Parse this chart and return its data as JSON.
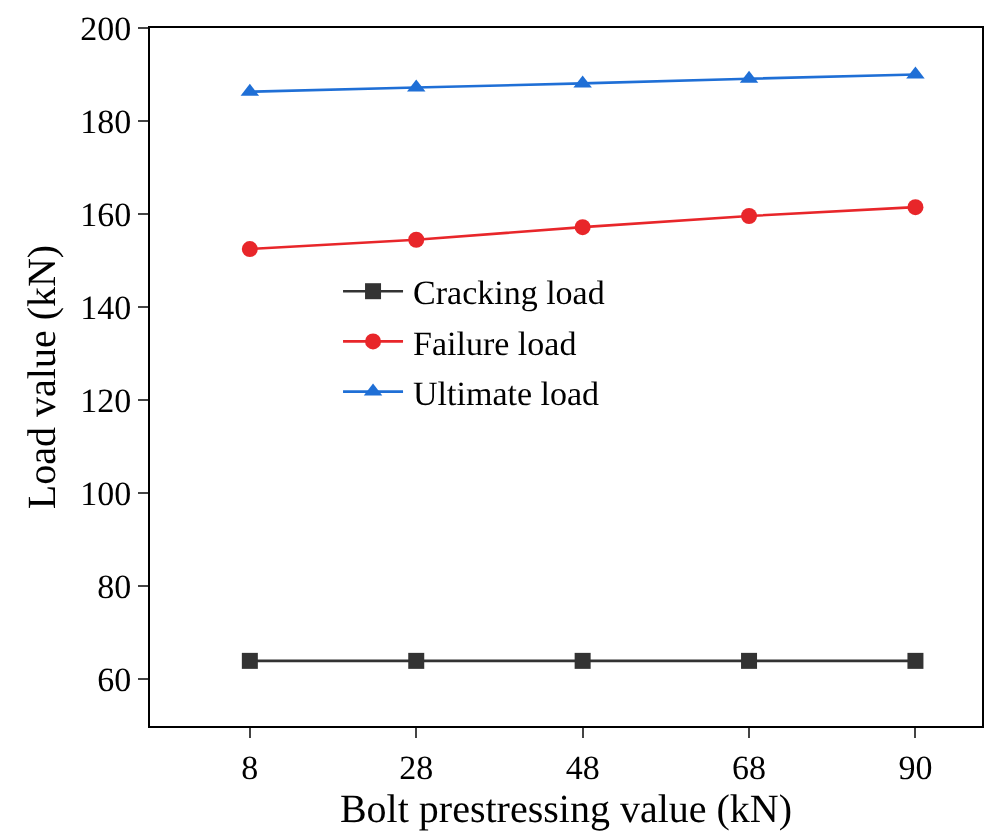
{
  "chart_data": {
    "type": "line",
    "xlabel": "Bolt prestressing value (kN)",
    "ylabel": "Load value (kN)",
    "categories": [
      "8",
      "28",
      "48",
      "68",
      "90"
    ],
    "series": [
      {
        "name": "Cracking load",
        "color": "#333333",
        "marker": "square",
        "values": [
          64,
          64,
          64,
          64,
          64
        ]
      },
      {
        "name": "Failure load",
        "color": "#e8262a",
        "marker": "circle",
        "values": [
          152.5,
          154.5,
          157.2,
          159.6,
          161.5
        ]
      },
      {
        "name": "Ultimate load",
        "color": "#1f6fd6",
        "marker": "triangle",
        "values": [
          186.3,
          187.2,
          188.1,
          189.1,
          190
        ]
      }
    ],
    "ylim": [
      50,
      200
    ],
    "yticks": [
      60,
      80,
      100,
      120,
      140,
      160,
      180,
      200
    ],
    "grid": false,
    "legend": "center",
    "line_style": "solid"
  }
}
